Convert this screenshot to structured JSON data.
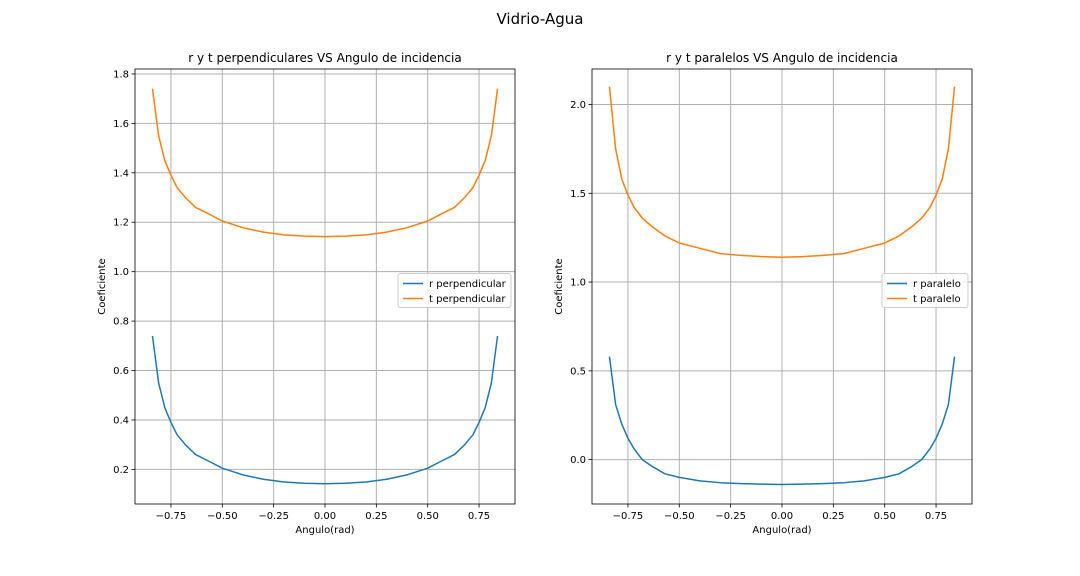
{
  "figure": {
    "suptitle": "Vidrio-Agua"
  },
  "chart_data": [
    {
      "type": "line",
      "title": "r y t perpendiculares VS Angulo de incidencia",
      "xlabel": "Angulo(rad)",
      "ylabel": "Coeficiente",
      "xlim": [
        -0.925,
        0.925
      ],
      "ylim": [
        0.06,
        1.82
      ],
      "xticks": [
        "−0.75",
        "−0.50",
        "−0.25",
        "0.00",
        "0.25",
        "0.50",
        "0.75"
      ],
      "xtick_values": [
        -0.75,
        -0.5,
        -0.25,
        0,
        0.25,
        0.5,
        0.75
      ],
      "yticks": [
        "0.2",
        "0.4",
        "0.6",
        "0.8",
        "1.0",
        "1.2",
        "1.4",
        "1.6",
        "1.8"
      ],
      "ytick_values": [
        0.2,
        0.4,
        0.6,
        0.8,
        1.0,
        1.2,
        1.4,
        1.6,
        1.8
      ],
      "grid": true,
      "legend_position": "center-right",
      "x": [
        -0.84,
        -0.81,
        -0.78,
        -0.75,
        -0.72,
        -0.68,
        -0.63,
        -0.57,
        -0.5,
        -0.4,
        -0.3,
        -0.2,
        -0.1,
        0.0,
        0.1,
        0.2,
        0.3,
        0.4,
        0.5,
        0.57,
        0.63,
        0.68,
        0.72,
        0.75,
        0.78,
        0.81,
        0.84
      ],
      "series": [
        {
          "name": "r perpendicular",
          "color": "#1f77b4",
          "values": [
            0.74,
            0.55,
            0.45,
            0.39,
            0.34,
            0.3,
            0.26,
            0.235,
            0.205,
            0.178,
            0.16,
            0.149,
            0.144,
            0.142,
            0.144,
            0.149,
            0.16,
            0.178,
            0.205,
            0.235,
            0.26,
            0.3,
            0.34,
            0.39,
            0.45,
            0.55,
            0.74
          ]
        },
        {
          "name": "t perpendicular",
          "color": "#ff7f0e",
          "values": [
            1.74,
            1.55,
            1.45,
            1.39,
            1.34,
            1.3,
            1.26,
            1.235,
            1.205,
            1.178,
            1.16,
            1.149,
            1.144,
            1.142,
            1.144,
            1.149,
            1.16,
            1.178,
            1.205,
            1.235,
            1.26,
            1.3,
            1.34,
            1.39,
            1.45,
            1.55,
            1.74
          ]
        }
      ]
    },
    {
      "type": "line",
      "title": "r y t paralelos VS Angulo de incidencia",
      "xlabel": "Angulo(rad)",
      "ylabel": "Coeficiente",
      "xlim": [
        -0.925,
        0.925
      ],
      "ylim": [
        -0.25,
        2.2
      ],
      "xticks": [
        "−0.75",
        "−0.50",
        "−0.25",
        "0.00",
        "0.25",
        "0.50",
        "0.75"
      ],
      "xtick_values": [
        -0.75,
        -0.5,
        -0.25,
        0,
        0.25,
        0.5,
        0.75
      ],
      "yticks": [
        "0.0",
        "0.5",
        "1.0",
        "1.5",
        "2.0"
      ],
      "ytick_values": [
        0.0,
        0.5,
        1.0,
        1.5,
        2.0
      ],
      "grid": true,
      "legend_position": "center-right",
      "x": [
        -0.84,
        -0.81,
        -0.78,
        -0.75,
        -0.72,
        -0.68,
        -0.63,
        -0.57,
        -0.5,
        -0.4,
        -0.3,
        -0.2,
        -0.1,
        0.0,
        0.1,
        0.2,
        0.3,
        0.4,
        0.5,
        0.57,
        0.63,
        0.68,
        0.72,
        0.75,
        0.78,
        0.81,
        0.84
      ],
      "series": [
        {
          "name": "r paralelo",
          "color": "#1f77b4",
          "values": [
            0.58,
            0.31,
            0.2,
            0.12,
            0.06,
            0.0,
            -0.04,
            -0.08,
            -0.1,
            -0.12,
            -0.13,
            -0.135,
            -0.138,
            -0.14,
            -0.138,
            -0.135,
            -0.13,
            -0.12,
            -0.1,
            -0.08,
            -0.04,
            0.0,
            0.06,
            0.12,
            0.2,
            0.31,
            0.58
          ]
        },
        {
          "name": "t paralelo",
          "color": "#ff7f0e",
          "values": [
            2.1,
            1.75,
            1.58,
            1.49,
            1.42,
            1.36,
            1.31,
            1.26,
            1.22,
            1.19,
            1.16,
            1.15,
            1.143,
            1.14,
            1.143,
            1.15,
            1.16,
            1.19,
            1.22,
            1.26,
            1.31,
            1.36,
            1.42,
            1.49,
            1.58,
            1.75,
            2.1
          ]
        }
      ]
    }
  ]
}
